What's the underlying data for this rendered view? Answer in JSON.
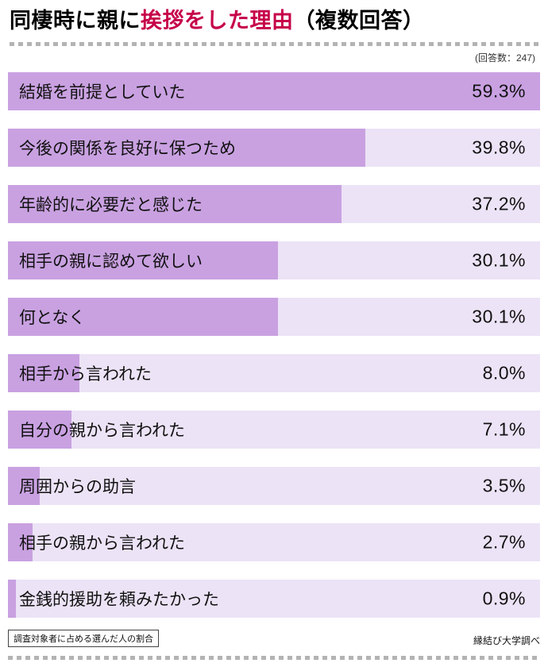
{
  "header": {
    "title_prefix": "同棲時に親に",
    "title_accent": "挨拶をした理由",
    "title_suffix": "（複数回答）",
    "response_count": "(回答数：247)"
  },
  "chart_data": {
    "type": "bar",
    "orientation": "horizontal",
    "title": "同棲時に親に挨拶をした理由（複数回答）",
    "categories": [
      "結婚を前提としていた",
      "今後の関係を良好に保つため",
      "年齢的に必要だと感じた",
      "相手の親に認めて欲しい",
      "何となく",
      "相手から言われた",
      "自分の親から言われた",
      "周囲からの助言",
      "相手の親から言われた",
      "金銭的援助を頼みたかった"
    ],
    "values": [
      59.3,
      39.8,
      37.2,
      30.1,
      30.1,
      8.0,
      7.1,
      3.5,
      2.7,
      0.9
    ],
    "value_labels": [
      "59.3%",
      "39.8%",
      "37.2%",
      "30.1%",
      "30.1%",
      "8.0%",
      "7.1%",
      "3.5%",
      "2.7%",
      "0.9%"
    ],
    "xlim": [
      0,
      59.3
    ],
    "xlabel": "",
    "ylabel": "",
    "grid": false,
    "legend": false,
    "colors": {
      "bar_fill": "#c9a1e1",
      "bar_background": "#ece3f6",
      "title_accent": "#c60149",
      "text": "#111111"
    }
  },
  "footer": {
    "note": "調査対象者に占める選んだ人の割合",
    "credit": "縁結び大学調べ"
  }
}
